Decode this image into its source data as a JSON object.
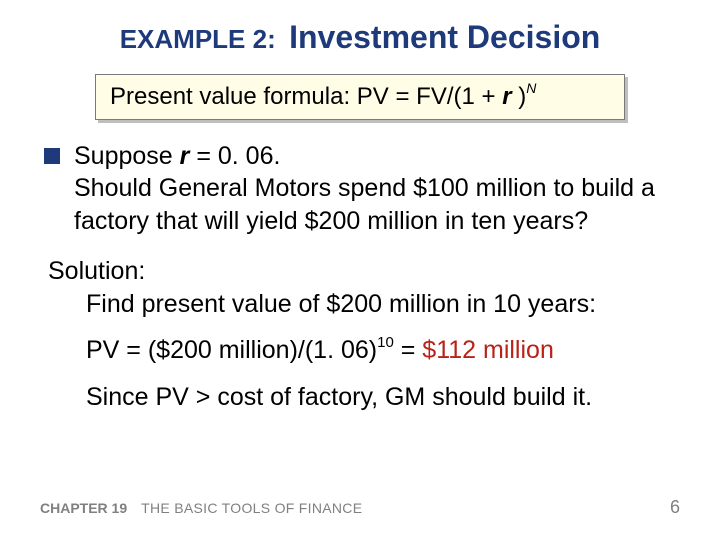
{
  "title": {
    "label": "EXAMPLE 2:",
    "main": "Investment Decision"
  },
  "formula": {
    "prefix": "Present value formula:  PV = FV/(1 + ",
    "rvar": "r ",
    "close": ")",
    "exp": "N"
  },
  "bullet": {
    "line1a": "Suppose ",
    "rvar": "r",
    "line1b": " = 0. 06.",
    "line2": "Should General Motors spend $100 million to build a factory that will yield $200 million in ten years?"
  },
  "solution": {
    "heading": "Solution:",
    "instr": "Find present value of $200 million in 10 years:",
    "pv_prefix": "PV = ($200 million)/(1. 06)",
    "pv_exp": "10",
    "pv_eq": " = ",
    "pv_result": "$112 million",
    "since": "Since PV > cost of factory, GM should build it."
  },
  "footer": {
    "chapter": "CHAPTER 19",
    "title": "THE BASIC TOOLS OF FINANCE",
    "page": "6"
  },
  "colors": {
    "title_color": "#1f3a7a",
    "box_bg": "#fffde6",
    "box_shadow": "#bfbfbf",
    "result_color": "#b82218",
    "footer_color": "#808080"
  }
}
